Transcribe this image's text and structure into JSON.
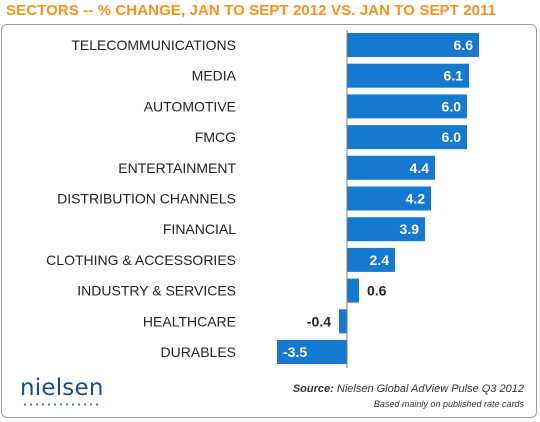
{
  "title": "SECTORS -- % CHANGE, JAN TO SEPT 2012 VS. JAN TO SEPT 2011",
  "colors": {
    "title": "#f7931e",
    "bar": "#1579cf",
    "axis": "#7f7f7f",
    "logo": "#1b4b8f"
  },
  "chart_data": {
    "type": "bar",
    "orientation": "horizontal",
    "title": "SECTORS -- % CHANGE, JAN TO SEPT 2012 VS. JAN TO SEPT 2011",
    "categories": [
      "TELECOMMUNICATIONS",
      "MEDIA",
      "AUTOMOTIVE",
      "FMCG",
      "ENTERTAINMENT",
      "DISTRIBUTION CHANNELS",
      "FINANCIAL",
      "CLOTHING & ACCESSORIES",
      "INDUSTRY & SERVICES",
      "HEALTHCARE",
      "DURABLES"
    ],
    "values": [
      6.6,
      6.1,
      6.0,
      6.0,
      4.4,
      4.2,
      3.9,
      2.4,
      0.6,
      -0.4,
      -3.5
    ],
    "value_labels": [
      "6.6",
      "6.1",
      "6.0",
      "6.0",
      "4.4",
      "4.2",
      "3.9",
      "2.4",
      "0.6",
      "-0.4",
      "-3.5"
    ],
    "xlim": [
      -3.5,
      6.6
    ],
    "grid": false,
    "legend": "none"
  },
  "footer": {
    "logo": "nielsen",
    "source_label": "Source:",
    "source_text": "Nielsen Global AdView Pulse Q3 2012",
    "note": "Based mainly on published rate cards"
  }
}
